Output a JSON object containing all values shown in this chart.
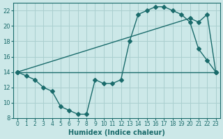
{
  "bg_color": "#cce8e8",
  "line_color": "#1a6b6b",
  "grid_color": "#aacfcf",
  "xlabel": "Humidex (Indice chaleur)",
  "xlim": [
    -0.5,
    23.5
  ],
  "ylim": [
    8,
    23
  ],
  "yticks": [
    8,
    10,
    12,
    14,
    16,
    18,
    20,
    22
  ],
  "xticks": [
    0,
    1,
    2,
    3,
    4,
    5,
    6,
    7,
    8,
    9,
    10,
    11,
    12,
    13,
    14,
    15,
    16,
    17,
    18,
    19,
    20,
    21,
    22,
    23
  ],
  "line1_x": [
    0,
    1,
    2,
    3,
    4,
    5,
    6,
    7,
    8,
    9,
    10,
    11,
    12,
    13,
    14,
    15,
    16,
    17,
    18,
    19,
    20,
    21,
    22,
    23
  ],
  "line1_y": [
    14,
    13.5,
    13.0,
    12.0,
    11.5,
    9.5,
    9.0,
    8.5,
    8.5,
    13.0,
    12.5,
    12.5,
    13.0,
    18.0,
    21.5,
    22.0,
    22.5,
    22.5,
    22.0,
    21.5,
    20.5,
    17.0,
    15.5,
    14.0
  ],
  "line2_x": [
    0,
    20,
    21,
    22,
    23
  ],
  "line2_y": [
    14,
    21.0,
    20.5,
    21.5,
    14.0
  ],
  "line3_x": [
    0,
    23
  ],
  "line3_y": [
    14,
    14.0
  ],
  "markersize": 3
}
